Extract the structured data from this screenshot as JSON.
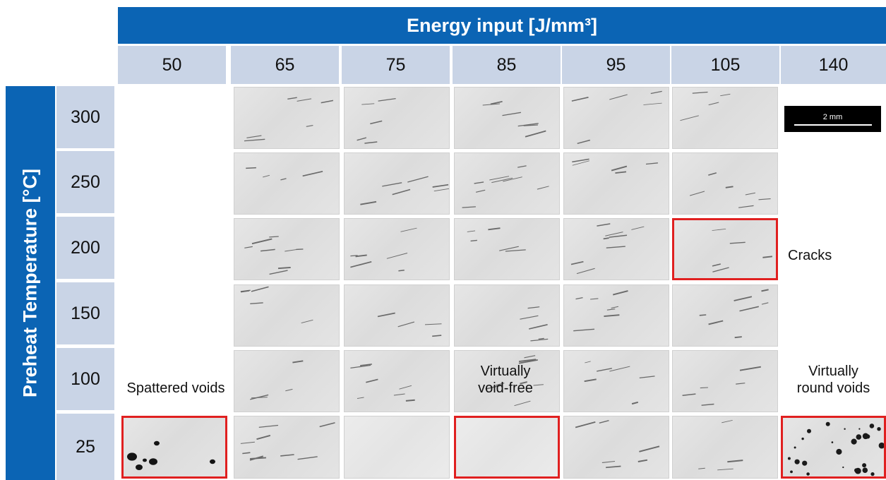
{
  "header": {
    "energy_title": "Energy input [J/mm³]",
    "preheat_title": "Preheat Temperature [°C]"
  },
  "energy_levels": [
    "50",
    "65",
    "75",
    "85",
    "95",
    "105",
    "140"
  ],
  "temperature_levels": [
    "300",
    "250",
    "200",
    "150",
    "100",
    "25"
  ],
  "annotations": {
    "cracks": "Cracks",
    "spattered": "Spattered voids",
    "void_free_1": "Virtually",
    "void_free_2": "void-free",
    "round_1": "Virtually",
    "round_2": "round voids"
  },
  "scale_bar": {
    "label": "2 mm"
  },
  "colors": {
    "banner": "#0b64b4",
    "header_cell": "#c9d4e6",
    "highlight": "#e02020"
  }
}
